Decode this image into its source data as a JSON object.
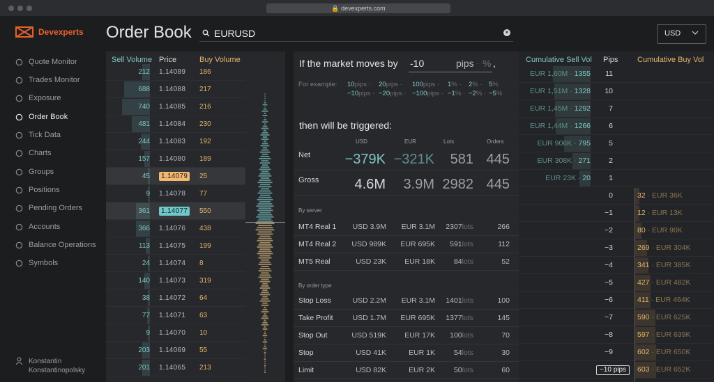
{
  "browser": {
    "url": "devexperts.com"
  },
  "app": {
    "brand": "Devexperts",
    "page_title": "Order Book",
    "search_value": "EURUSD",
    "currency": "USD"
  },
  "nav": [
    {
      "label": "Quote Monitor",
      "icon": "quote-icon"
    },
    {
      "label": "Trades Monitor",
      "icon": "trades-icon"
    },
    {
      "label": "Exposure",
      "icon": "exposure-icon"
    },
    {
      "label": "Order Book",
      "icon": "orderbook-icon",
      "active": true
    },
    {
      "label": "Tick Data",
      "icon": "tickdata-icon"
    },
    {
      "label": "Charts",
      "icon": "charts-icon"
    },
    {
      "label": "Groups",
      "icon": "groups-icon"
    },
    {
      "label": "Positions",
      "icon": "positions-icon"
    },
    {
      "label": "Pending Orders",
      "icon": "pending-icon"
    },
    {
      "label": "Accounts",
      "icon": "accounts-icon"
    },
    {
      "label": "Balance Operations",
      "icon": "balance-icon"
    },
    {
      "label": "Symbols",
      "icon": "symbols-icon"
    }
  ],
  "user": {
    "first": "Konstantin",
    "last": "Konstantinopolsky"
  },
  "orderbook": {
    "headers": {
      "sell": "Sell Volume",
      "price": "Price",
      "buy": "Buy Volume"
    },
    "rows": [
      {
        "sell": "212",
        "price": "1.14089",
        "buy": "186"
      },
      {
        "sell": "688",
        "price": "1.14088",
        "buy": "217"
      },
      {
        "sell": "740",
        "price": "1.14085",
        "buy": "216"
      },
      {
        "sell": "481",
        "price": "1.14084",
        "buy": "230"
      },
      {
        "sell": "244",
        "price": "1.14083",
        "buy": "192"
      },
      {
        "sell": "157",
        "price": "1.14080",
        "buy": "189"
      },
      {
        "sell": "45",
        "price": "1.14079",
        "buy": "25",
        "mark": "ask"
      },
      {
        "sell": "9",
        "price": "1.14078",
        "buy": "77"
      },
      {
        "sell": "361",
        "price": "1.14077",
        "buy": "550",
        "mark": "bid"
      },
      {
        "sell": "366",
        "price": "1.14076",
        "buy": "438"
      },
      {
        "sell": "113",
        "price": "1.14075",
        "buy": "199"
      },
      {
        "sell": "24",
        "price": "1.14074",
        "buy": "8"
      },
      {
        "sell": "140",
        "price": "1.14073",
        "buy": "319"
      },
      {
        "sell": "38",
        "price": "1.14072",
        "buy": "64"
      },
      {
        "sell": "77",
        "price": "1.14071",
        "buy": "63"
      },
      {
        "sell": "9",
        "price": "1.14070",
        "buy": "10"
      },
      {
        "sell": "203",
        "price": "1.14069",
        "buy": "55"
      },
      {
        "sell": "201",
        "price": "1.14065",
        "buy": "213"
      }
    ]
  },
  "scenario": {
    "question_prefix": "If the market moves by",
    "pips_value": "-10",
    "unit_pips": "pips",
    "unit_pct": "%",
    "comma": ",",
    "example_label": "For example:",
    "examples_pos": [
      "10",
      "20",
      "100",
      "1",
      "2",
      "5"
    ],
    "examples_neg": [
      "−10",
      "−20",
      "−100",
      "−1",
      "−2",
      "−5"
    ],
    "example_units": [
      "pips",
      "pips",
      "pips",
      "%",
      "%",
      "%"
    ],
    "triggered_label": "then will be triggered:",
    "columns": [
      "USD",
      "EUR",
      "Lots",
      "Orders"
    ],
    "net": {
      "label": "Net",
      "usd": "−379K",
      "eur": "−321K",
      "lots": "581",
      "orders": "445"
    },
    "gross": {
      "label": "Gross",
      "usd": "4.6M",
      "eur": "3.9M",
      "lots": "2982",
      "orders": "445"
    },
    "by_server_label": "By server",
    "servers": [
      {
        "name": "MT4 Real 1",
        "usd": "USD 3.9M",
        "eur": "EUR 3.1M",
        "lots": "2307",
        "orders": "266"
      },
      {
        "name": "MT4 Real 2",
        "usd": "USD 989K",
        "eur": "EUR 695K",
        "lots": "591",
        "orders": "112"
      },
      {
        "name": "MT5 Real",
        "usd": "USD 23K",
        "eur": "EUR 18K",
        "lots": "84",
        "orders": "52"
      }
    ],
    "by_type_label": "By order type",
    "types": [
      {
        "name": "Stop Loss",
        "usd": "USD 2.2M",
        "eur": "EUR 3.1M",
        "lots": "1401",
        "orders": "100"
      },
      {
        "name": "Take Profit",
        "usd": "USD 1.7M",
        "eur": "EUR 695K",
        "lots": "1377",
        "orders": "145"
      },
      {
        "name": "Stop Out",
        "usd": "USD 519K",
        "eur": "EUR 17K",
        "lots": "100",
        "orders": "70"
      },
      {
        "name": "Stop",
        "usd": "USD 41K",
        "eur": "EUR 1K",
        "lots": "54",
        "orders": "30"
      },
      {
        "name": "Limit",
        "usd": "USD 82K",
        "eur": "EUR 2K",
        "lots": "50",
        "orders": "60"
      }
    ],
    "lots_unit": "lots"
  },
  "cumulative": {
    "headers": {
      "sell": "Cumulative Sell Vol",
      "pips": "Pips",
      "buy": "Cumulative Buy Vol"
    },
    "rows": [
      {
        "sell_cur": "EUR 1,60M",
        "sell_n": "1355",
        "pips": "11",
        "buy_n": "",
        "buy_cur": "",
        "sell_frac": 0.44
      },
      {
        "sell_cur": "EUR 1,51M",
        "sell_n": "1328",
        "pips": "10",
        "buy_n": "",
        "buy_cur": "",
        "sell_frac": 0.42
      },
      {
        "sell_cur": "EUR 1,45M",
        "sell_n": "1292",
        "pips": "7",
        "buy_n": "",
        "buy_cur": "",
        "sell_frac": 0.41
      },
      {
        "sell_cur": "EUR 1,44M",
        "sell_n": "1266",
        "pips": "6",
        "buy_n": "",
        "buy_cur": "",
        "sell_frac": 0.4
      },
      {
        "sell_cur": "EUR 906K",
        "sell_n": "795",
        "pips": "5",
        "buy_n": "",
        "buy_cur": "",
        "sell_frac": 0.26
      },
      {
        "sell_cur": "EUR 308K",
        "sell_n": "271",
        "pips": "2",
        "buy_n": "",
        "buy_cur": "",
        "sell_frac": 0.12
      },
      {
        "sell_cur": "EUR 23K",
        "sell_n": "20",
        "pips": "1",
        "buy_n": "",
        "buy_cur": "",
        "sell_frac": 0.0
      },
      {
        "sell_cur": "",
        "sell_n": "",
        "pips": "0",
        "buy_n": "32",
        "buy_cur": "EUR 36K",
        "buy_frac": 0.0
      },
      {
        "sell_cur": "",
        "sell_n": "",
        "pips": "−1",
        "buy_n": "12",
        "buy_cur": "EUR 13K",
        "buy_frac": 0.0
      },
      {
        "sell_cur": "",
        "sell_n": "",
        "pips": "−2",
        "buy_n": "80",
        "buy_cur": "EUR 90K",
        "buy_frac": 0.04
      },
      {
        "sell_cur": "",
        "sell_n": "",
        "pips": "−3",
        "buy_n": "269",
        "buy_cur": "EUR 304K",
        "buy_frac": 0.13
      },
      {
        "sell_cur": "",
        "sell_n": "",
        "pips": "−4",
        "buy_n": "341",
        "buy_cur": "EUR 385K",
        "buy_frac": 0.15
      },
      {
        "sell_cur": "",
        "sell_n": "",
        "pips": "−5",
        "buy_n": "427",
        "buy_cur": "EUR 482K",
        "buy_frac": 0.19
      },
      {
        "sell_cur": "",
        "sell_n": "",
        "pips": "−6",
        "buy_n": "411",
        "buy_cur": "EUR 464K",
        "buy_frac": 0.19
      },
      {
        "sell_cur": "",
        "sell_n": "",
        "pips": "−7",
        "buy_n": "590",
        "buy_cur": "EUR 625K",
        "buy_frac": 0.27
      },
      {
        "sell_cur": "",
        "sell_n": "",
        "pips": "−8",
        "buy_n": "597",
        "buy_cur": "EUR 639K",
        "buy_frac": 0.27
      },
      {
        "sell_cur": "",
        "sell_n": "",
        "pips": "−9",
        "buy_n": "602",
        "buy_cur": "EUR 650K",
        "buy_frac": 0.28
      },
      {
        "sell_cur": "",
        "sell_n": "",
        "pips": "−10 pips",
        "buy_n": "603",
        "buy_cur": "EUR 652K",
        "buy_frac": 0.28,
        "boxed": true
      }
    ]
  },
  "colors": {
    "brand": "#e8612c",
    "sell": "#7fc6c6",
    "buy": "#e5b56a",
    "ask_box": "#f3b870",
    "bid_box": "#6ec9c9"
  }
}
